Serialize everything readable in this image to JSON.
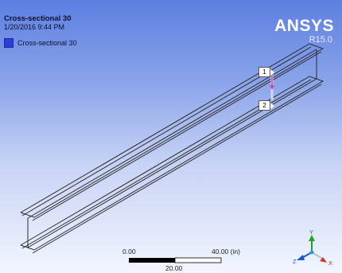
{
  "viewport": {
    "title": "Cross-sectional 30",
    "date": "1/20/2016 9:44 PM",
    "legend_label": "Cross-sectional 30",
    "legend_color": "#2b3fd6",
    "logo": "ANSYS",
    "version": "R15.0"
  },
  "probes": [
    "1",
    "2"
  ],
  "scale_bar": {
    "left_label": "0.00",
    "mid_label": "20.00",
    "right_label": "40.00 (in)"
  },
  "triad": {
    "x_label": "X",
    "y_label": "Y",
    "z_label": "Z"
  },
  "colors": {
    "background_top": "#5c7fe0",
    "background_bottom": "#f3f6ff",
    "edge": "#2c2c2c",
    "dimension": "#c24ab5"
  }
}
